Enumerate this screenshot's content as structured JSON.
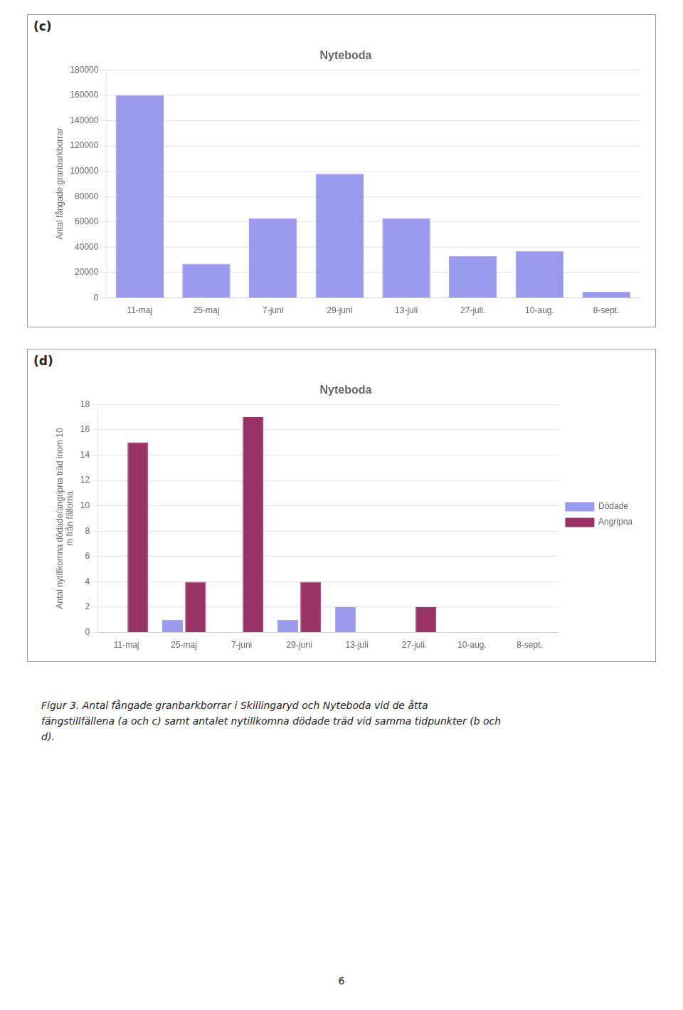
{
  "chart_data": [
    {
      "type": "bar",
      "panel_label": "(c)",
      "title": "Nyteboda",
      "categories": [
        "11-maj",
        "25-maj",
        "7-juni",
        "29-juni",
        "13-juli",
        "27-juli.",
        "10-aug.",
        "8-sept."
      ],
      "values": [
        160000,
        27000,
        63000,
        98000,
        63000,
        33000,
        37000,
        5000
      ],
      "color": "#9999ee",
      "y_label": "Antal fångade granbarkborrar",
      "ylim": [
        0,
        180000
      ],
      "yticks": [
        0,
        20000,
        40000,
        60000,
        80000,
        100000,
        120000,
        140000,
        160000,
        180000
      ],
      "grid": true
    },
    {
      "type": "bar",
      "panel_label": "(d)",
      "title": "Nyteboda",
      "categories": [
        "11-maj",
        "25-maj",
        "7-juni",
        "29-juni",
        "13-juli",
        "27-juli.",
        "10-aug.",
        "8-sept."
      ],
      "series": [
        {
          "name": "Dödade",
          "color": "#9999ee",
          "values": [
            0,
            1,
            0,
            1,
            2,
            0,
            0,
            0
          ]
        },
        {
          "name": "Angripna",
          "color": "#993366",
          "values": [
            15,
            4,
            17,
            4,
            0,
            2,
            0,
            0
          ]
        }
      ],
      "y_label": "Antal nytillkomna dödade/angripna träd inom 10\nm från fällorna",
      "ylim": [
        0,
        18
      ],
      "yticks": [
        0,
        2,
        4,
        6,
        8,
        10,
        12,
        14,
        16,
        18
      ],
      "grid": true,
      "legend": "right"
    }
  ],
  "caption": [
    "Figur 3. Antal fångade granbarkborrar i Skillingaryd och Nyteboda vid de åtta",
    "fängstillfällena (a och c) samt antalet nytillkomna dödade träd vid samma tidpunkter (b och",
    "d)."
  ],
  "page_number": "6"
}
